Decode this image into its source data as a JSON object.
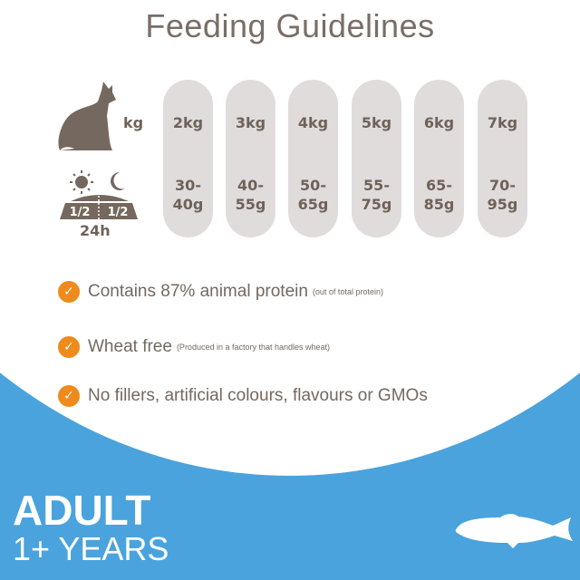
{
  "title": "Feeding Guidelines",
  "weight_label": "kg",
  "period_label": "24h",
  "bowl_split": [
    "1/2",
    "1/2"
  ],
  "colors": {
    "background": "#4aa3dc",
    "pill": "#e0dcdc",
    "text": "#6f6259",
    "check": "#ee8b1c"
  },
  "feeding_table": [
    {
      "weight": "2kg",
      "amount": [
        "30-",
        "40g"
      ]
    },
    {
      "weight": "3kg",
      "amount": [
        "40-",
        "55g"
      ]
    },
    {
      "weight": "4kg",
      "amount": [
        "50-",
        "65g"
      ]
    },
    {
      "weight": "5kg",
      "amount": [
        "55-",
        "75g"
      ]
    },
    {
      "weight": "6kg",
      "amount": [
        "65-",
        "85g"
      ]
    },
    {
      "weight": "7kg",
      "amount": [
        "70-",
        "95g"
      ]
    }
  ],
  "features": [
    {
      "text": "Contains 87% animal protein",
      "note": "(out of total protein)"
    },
    {
      "text": "Wheat free",
      "note": "(Produced in a factory that handles wheat)"
    },
    {
      "text": "No fillers, artificial colours, flavours or GMOs",
      "note": ""
    }
  ],
  "check_glyph": "✓",
  "life_stage": "ADULT",
  "age": "1+ YEARS"
}
